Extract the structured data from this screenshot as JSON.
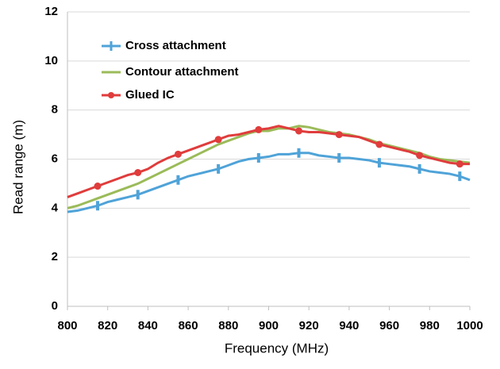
{
  "chart_data": {
    "type": "line",
    "x_label": "Frequency (MHz)",
    "y_label": "Read range (m)",
    "x": [
      800,
      805,
      810,
      815,
      820,
      825,
      830,
      835,
      840,
      845,
      850,
      855,
      860,
      865,
      870,
      875,
      880,
      885,
      890,
      895,
      900,
      905,
      910,
      915,
      920,
      925,
      930,
      935,
      940,
      945,
      950,
      955,
      960,
      965,
      970,
      975,
      980,
      985,
      990,
      995,
      1000
    ],
    "series": [
      {
        "name": "Cross attachment",
        "color": "#4fa3d8",
        "values": [
          3.85,
          3.9,
          4.0,
          4.1,
          4.25,
          4.35,
          4.45,
          4.55,
          4.7,
          4.85,
          5.0,
          5.15,
          5.3,
          5.4,
          5.5,
          5.6,
          5.75,
          5.9,
          6.0,
          6.05,
          6.1,
          6.2,
          6.2,
          6.25,
          6.25,
          6.15,
          6.1,
          6.05,
          6.05,
          6.0,
          5.95,
          5.85,
          5.8,
          5.75,
          5.7,
          5.6,
          5.5,
          5.45,
          5.4,
          5.3,
          5.15
        ]
      },
      {
        "name": "Contour attachment",
        "color": "#9bbb59",
        "values": [
          4.0,
          4.1,
          4.25,
          4.4,
          4.55,
          4.7,
          4.85,
          5.0,
          5.2,
          5.4,
          5.6,
          5.8,
          6.0,
          6.2,
          6.4,
          6.6,
          6.75,
          6.9,
          7.05,
          7.15,
          7.15,
          7.25,
          7.25,
          7.35,
          7.3,
          7.2,
          7.1,
          7.05,
          7.0,
          6.9,
          6.8,
          6.65,
          6.55,
          6.45,
          6.35,
          6.25,
          6.1,
          6.0,
          5.95,
          5.9,
          5.85
        ]
      },
      {
        "name": "Glued IC",
        "color": "#e03c3c",
        "values": [
          4.45,
          4.6,
          4.75,
          4.9,
          5.05,
          5.2,
          5.35,
          5.45,
          5.6,
          5.85,
          6.05,
          6.2,
          6.35,
          6.5,
          6.65,
          6.8,
          6.95,
          7.0,
          7.1,
          7.2,
          7.25,
          7.35,
          7.25,
          7.15,
          7.1,
          7.1,
          7.05,
          7.0,
          6.95,
          6.9,
          6.75,
          6.6,
          6.5,
          6.4,
          6.3,
          6.15,
          6.05,
          5.95,
          5.85,
          5.8,
          5.8
        ]
      }
    ],
    "xlim": [
      800,
      1000
    ],
    "xticks": [
      800,
      820,
      840,
      860,
      880,
      900,
      920,
      940,
      960,
      980,
      1000
    ],
    "ylim": [
      0,
      12
    ],
    "yticks": [
      0,
      2,
      4,
      6,
      8,
      10,
      12
    ],
    "grid": true,
    "legend": "upper left"
  }
}
